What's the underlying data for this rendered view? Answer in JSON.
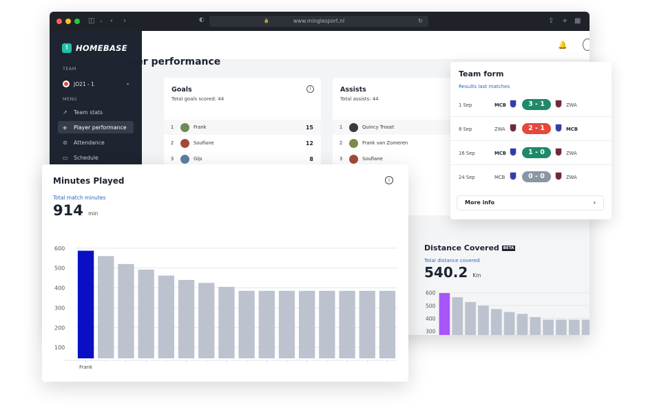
{
  "browser": {
    "url": "www.minglesport.nl"
  },
  "sidebar": {
    "logo_text": "HOMEBASE",
    "team_heading": "TEAM",
    "team_name": "JO21 - 1",
    "menu_heading": "MENU",
    "items": [
      {
        "label": "Team stats",
        "icon": "chart-icon"
      },
      {
        "label": "Player performance",
        "icon": "shield-icon"
      },
      {
        "label": "Attendance",
        "icon": "check-circle-icon"
      },
      {
        "label": "Schedule",
        "icon": "calendar-icon"
      }
    ]
  },
  "page": {
    "title": "Player performance"
  },
  "goals": {
    "title": "Goals",
    "subtitle": "Total goals scored: 44",
    "rows": [
      {
        "rank": "1",
        "name": "Frank",
        "value": "15"
      },
      {
        "rank": "2",
        "name": "Soufiane",
        "value": "12"
      },
      {
        "rank": "3",
        "name": "Gijs",
        "value": "8"
      }
    ]
  },
  "assists": {
    "title": "Assists",
    "subtitle": "Total assists: 44",
    "rows": [
      {
        "rank": "1",
        "name": "Quincy Troost"
      },
      {
        "rank": "2",
        "name": "Frank van Zomeren"
      },
      {
        "rank": "3",
        "name": "Soufiane"
      }
    ]
  },
  "team_form": {
    "title": "Team form",
    "subtitle": "Results last matches",
    "matches": [
      {
        "date": "1 Sep",
        "home": "MCB",
        "score": "3 - 1",
        "away": "ZWA",
        "result_color": "#1f8a6b"
      },
      {
        "date": "8 Sep",
        "home": "ZWA",
        "score": "2 - 1",
        "away": "MCB",
        "result_color": "#e5483b"
      },
      {
        "date": "16 Sep",
        "home": "MCB",
        "score": "1 - 0",
        "away": "ZWA",
        "result_color": "#1f8a6b"
      },
      {
        "date": "24 Sep",
        "home": "MCB",
        "score": "0 - 0",
        "away": "ZWA",
        "result_color": "#8c96a3"
      }
    ],
    "more_label": "More info"
  },
  "distance": {
    "title": "Distance Covered",
    "badge": "BETA",
    "subtitle": "Total distance covered",
    "value": "540.2",
    "unit": "Km"
  },
  "minutes": {
    "title": "Minutes Played",
    "subtitle": "Total match minutes",
    "value": "914",
    "unit": "min"
  },
  "chart_data": [
    {
      "type": "bar",
      "title": "Minutes Played",
      "categories": [
        "Frank",
        "",
        "",
        "",
        "",
        "",
        "",
        "",
        "",
        "",
        "",
        "",
        "",
        "",
        "",
        ""
      ],
      "values": [
        587,
        560,
        520,
        492,
        462,
        440,
        425,
        405,
        385,
        385,
        385,
        385,
        385,
        385,
        385,
        385
      ],
      "highlight_color": "#0a0fc4",
      "bar_color": "#bcc3cf",
      "yticks": [
        100,
        200,
        300,
        400,
        500,
        600
      ],
      "ylim": [
        45,
        620
      ],
      "grid": true
    },
    {
      "type": "bar",
      "title": "Distance Covered",
      "values": [
        598,
        565,
        528,
        500,
        473,
        450,
        435,
        410,
        390,
        390,
        390,
        390
      ],
      "highlight_color": "#a855f7",
      "bar_color": "#bcc3cf",
      "yticks": [
        300,
        400,
        500,
        600
      ],
      "ylim": [
        270,
        620
      ],
      "grid": true
    }
  ]
}
